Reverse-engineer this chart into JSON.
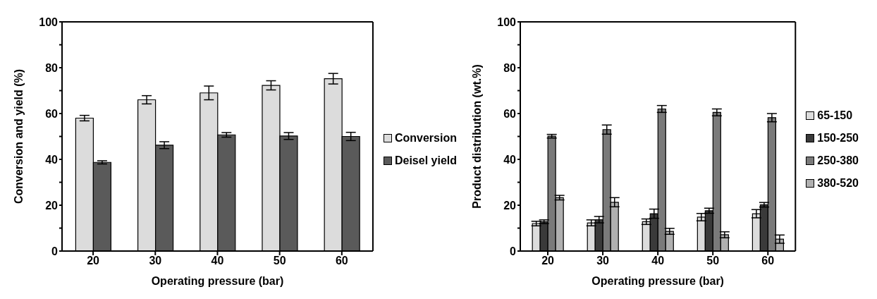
{
  "chart_data": [
    {
      "type": "bar",
      "xlabel": "Operating pressure (bar)",
      "ylabel": "Conversion and yield (%)",
      "categories": [
        "20",
        "30",
        "40",
        "50",
        "60"
      ],
      "series": [
        {
          "name": "Conversion",
          "color": "#dcdcdc",
          "values": [
            58,
            66,
            69,
            72.3,
            75.2
          ],
          "errors": [
            1.2,
            1.8,
            3,
            2,
            2.3
          ]
        },
        {
          "name": "Deisel yield",
          "color": "#5a5a5a",
          "values": [
            38.7,
            46.2,
            50.7,
            50.2,
            50
          ],
          "errors": [
            0.7,
            1.5,
            1,
            1.5,
            1.8
          ]
        }
      ],
      "ylim": [
        0,
        100
      ],
      "yticks": [
        0,
        {
          "value": 10,
          "label": null
        },
        20,
        {
          "value": 30,
          "label": null
        },
        40,
        {
          "value": 50,
          "label": null
        },
        60,
        {
          "value": 70,
          "label": null
        },
        80,
        {
          "value": 90,
          "label": null
        },
        100
      ],
      "grid": false,
      "legend": "right"
    },
    {
      "type": "bar",
      "xlabel": "Operating pressure (bar)",
      "ylabel": "Product distribution (wt.%)",
      "categories": [
        "20",
        "30",
        "40",
        "50",
        "60"
      ],
      "series": [
        {
          "name": "65-150",
          "color": "#dcdcdc",
          "values": [
            12,
            12.3,
            12.8,
            14.8,
            16.3
          ],
          "errors": [
            1,
            1.3,
            1.2,
            1.6,
            1.8
          ]
        },
        {
          "name": "150-250",
          "color": "#3a3a3a",
          "values": [
            12.8,
            13.7,
            16.3,
            17.6,
            20.2
          ],
          "errors": [
            0.8,
            1.4,
            2,
            1.1,
            1
          ]
        },
        {
          "name": "250-380",
          "color": "#7a7a7a",
          "values": [
            50.1,
            53,
            62,
            60.5,
            58.2
          ],
          "errors": [
            0.8,
            2,
            1.5,
            1.5,
            1.8
          ]
        },
        {
          "name": "380-520",
          "color": "#b0b0b0",
          "values": [
            23.3,
            21.3,
            8.6,
            7.1,
            5.2
          ],
          "errors": [
            1,
            2,
            1.3,
            1.3,
            1.8
          ]
        }
      ],
      "ylim": [
        0,
        100
      ],
      "yticks": [
        0,
        {
          "value": 10,
          "label": null
        },
        20,
        {
          "value": 30,
          "label": null
        },
        40,
        {
          "value": 50,
          "label": null
        },
        60,
        {
          "value": 70,
          "label": null
        },
        80,
        {
          "value": 90,
          "label": null
        },
        100
      ],
      "grid": false,
      "legend": "right"
    }
  ]
}
